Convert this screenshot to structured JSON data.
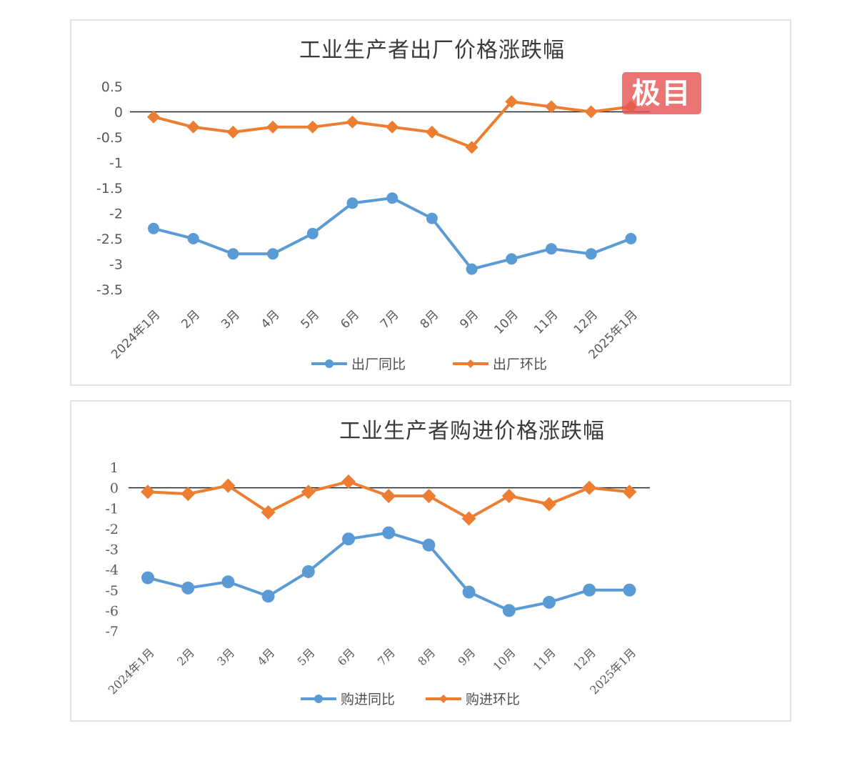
{
  "colors": {
    "yoy": "#5B9BD5",
    "mom": "#ED7D31",
    "zero_line": "#222222",
    "watermark_bg": "#E75555"
  },
  "watermark": {
    "text": "极目"
  },
  "chart_data": [
    {
      "type": "line",
      "title": "工业生产者出厂价格涨跌幅",
      "xlabel": "",
      "ylabel": "",
      "categories": [
        "2024年1月",
        "2月",
        "3月",
        "4月",
        "5月",
        "6月",
        "7月",
        "8月",
        "9月",
        "10月",
        "11月",
        "12月",
        "2025年1月"
      ],
      "yticks": [
        "0.5",
        "0",
        "-0.5",
        "-1",
        "-1.5",
        "-2",
        "-2.5",
        "-3",
        "-3.5"
      ],
      "ylim": [
        -3.5,
        0.5
      ],
      "grid": false,
      "legend_position": "bottom",
      "series": [
        {
          "name": "出厂同比",
          "marker": "circle",
          "color": "#5B9BD5",
          "values": [
            -2.3,
            -2.5,
            -2.8,
            -2.8,
            -2.4,
            -1.8,
            -1.7,
            -2.1,
            -3.1,
            -2.9,
            -2.7,
            -2.8,
            -2.5
          ]
        },
        {
          "name": "出厂环比",
          "marker": "diamond",
          "color": "#ED7D31",
          "values": [
            -0.1,
            -0.3,
            -0.4,
            -0.3,
            -0.3,
            -0.2,
            -0.3,
            -0.4,
            -0.7,
            0.2,
            0.1,
            0.0,
            0.1
          ]
        }
      ]
    },
    {
      "type": "line",
      "title": "工业生产者购进价格涨跌幅",
      "xlabel": "",
      "ylabel": "",
      "categories": [
        "2024年1月",
        "2月",
        "3月",
        "4月",
        "5月",
        "6月",
        "7月",
        "8月",
        "9月",
        "10月",
        "11月",
        "12月",
        "2025年1月"
      ],
      "yticks": [
        "1",
        "0",
        "-1",
        "-2",
        "-3",
        "-4",
        "-5",
        "-6",
        "-7"
      ],
      "ylim": [
        -7,
        1
      ],
      "grid": false,
      "legend_position": "bottom",
      "series": [
        {
          "name": "购进同比",
          "marker": "circle",
          "color": "#5B9BD5",
          "values": [
            -4.4,
            -4.9,
            -4.6,
            -5.3,
            -4.1,
            -2.5,
            -2.2,
            -2.8,
            -5.1,
            -6.0,
            -5.6,
            -5.0,
            -5.0
          ]
        },
        {
          "name": "购进环比",
          "marker": "diamond",
          "color": "#ED7D31",
          "values": [
            -0.2,
            -0.3,
            0.1,
            -1.2,
            -0.2,
            0.3,
            -0.4,
            -0.4,
            -1.5,
            -0.4,
            -0.8,
            0.0,
            -0.2
          ]
        }
      ]
    }
  ]
}
